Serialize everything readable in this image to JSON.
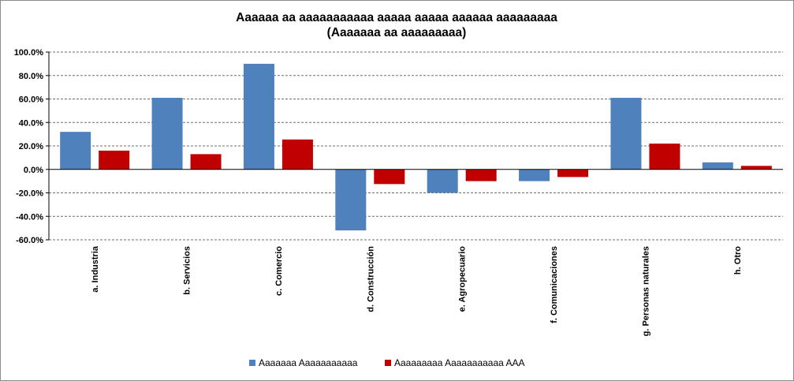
{
  "chart_data": {
    "type": "bar",
    "title": "Aaaaaa aa aaaaaaaaaaa aaaaa aaaaa aaaaaa aaaaaaaaa",
    "subtitle": "(Aaaaaaa aa aaaaaaaaa)",
    "categories": [
      "a. Industria",
      "b. Servicios",
      "c. Comercio",
      "d. Construcción",
      "e. Agropecuario",
      "f. Comunicaciones",
      "g. Personas naturales",
      "h. Otro"
    ],
    "series": [
      {
        "name": "Aaaaaaa Aaaaaaaaaaa",
        "color": "#4f81bd",
        "values": [
          32,
          61,
          90,
          -52,
          -20,
          -10,
          61,
          6
        ]
      },
      {
        "name": "Aaaaaaaaa Aaaaaaaaaaa AAA",
        "color": "#c00000",
        "values": [
          16,
          13,
          25.5,
          -12.5,
          -10,
          -6.5,
          22,
          3
        ]
      }
    ],
    "ylim": [
      -60,
      100
    ],
    "yticks": [
      "100.0%",
      "80.0%",
      "60.0%",
      "40.0%",
      "20.0%",
      "0.0%",
      "-20.0%",
      "-40.0%",
      "-60.0%"
    ],
    "ytick_values": [
      100,
      80,
      60,
      40,
      20,
      0,
      -20,
      -40,
      -60
    ],
    "grid": true,
    "legend_position": "bottom"
  }
}
